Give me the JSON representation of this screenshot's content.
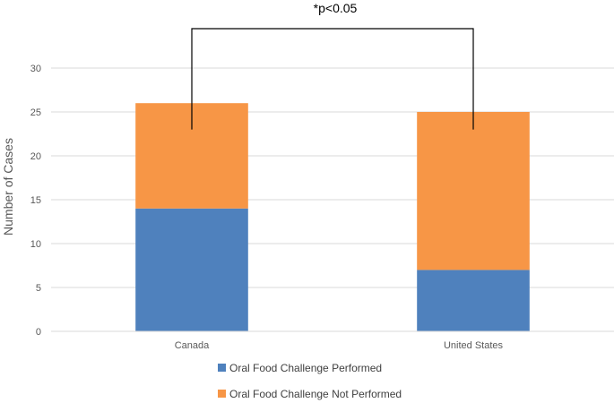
{
  "chart_data": {
    "type": "bar",
    "stacked": true,
    "categories": [
      "Canada",
      "United States"
    ],
    "series": [
      {
        "name": "Oral Food Challenge Performed",
        "values": [
          14,
          7
        ],
        "color": "#4f81bd"
      },
      {
        "name": "Oral Food Challenge Not Performed",
        "values": [
          12,
          18
        ],
        "color": "#f79646"
      }
    ],
    "title": "",
    "xlabel": "",
    "ylabel": "Number of Cases",
    "ylim": [
      0,
      35
    ],
    "yticks": [
      0,
      5,
      10,
      15,
      20,
      25,
      30
    ],
    "grid": true,
    "legend_position": "bottom",
    "annotation": {
      "text": "*p<0.05",
      "bracket_from": "Canada",
      "bracket_to": "United States",
      "bracket_bottom_value": 23
    }
  }
}
